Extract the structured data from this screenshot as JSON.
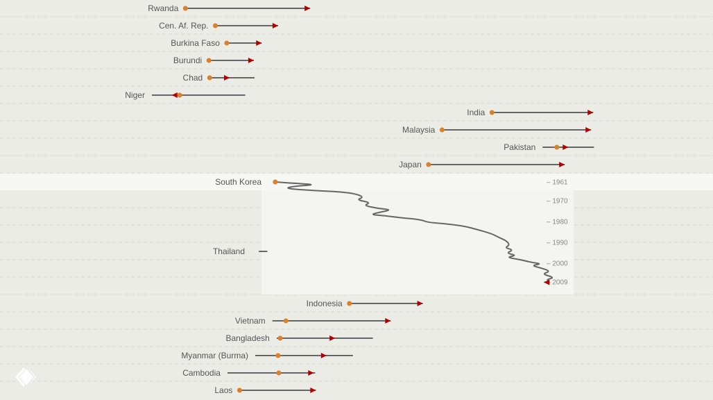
{
  "colors": {
    "background": "#ecece6",
    "highlight_band": "#f7f7f4",
    "panel": "#f4f4f0",
    "line": "#666666",
    "start_dot": "#d9822b",
    "end_arrow": "#b00000",
    "grid": "#d8d8d2",
    "logo": "#ffffff"
  },
  "icons": {
    "logo": "diamond-logo-icon"
  },
  "chart_data": {
    "type": "line",
    "title": "",
    "xlabel": "",
    "ylabel": "",
    "grid": true,
    "legend": "none",
    "series_top": [
      {
        "name": "Rwanda",
        "start": 0.26,
        "end": 0.435
      },
      {
        "name": "Cen. Af. Rep.",
        "start": 0.302,
        "end": 0.39
      },
      {
        "name": "Burkina Faso",
        "start": 0.318,
        "end": 0.367
      },
      {
        "name": "Burundi",
        "start": 0.293,
        "end": 0.356
      },
      {
        "name": "Chad",
        "start": 0.294,
        "end": 0.322,
        "extent": [
          0.294,
          0.357
        ]
      },
      {
        "name": "Niger",
        "start": 0.252,
        "end": 0.241,
        "extent": [
          0.213,
          0.344
        ]
      },
      {
        "name": "India",
        "start": 0.69,
        "end": 0.832
      },
      {
        "name": "Malaysia",
        "start": 0.62,
        "end": 0.829
      },
      {
        "name": "Pakistan",
        "start": 0.781,
        "end": 0.797,
        "extent": [
          0.761,
          0.833
        ]
      },
      {
        "name": "Japan",
        "start": 0.601,
        "end": 0.792
      }
    ],
    "highlight": {
      "names": [
        "South Korea",
        "Thailand"
      ],
      "year_ticks": [
        "1961",
        "1970",
        "1980",
        "1990",
        "2000",
        "2009"
      ],
      "path": [
        [
          0.386,
          1961
        ],
        [
          0.41,
          1961.6
        ],
        [
          0.445,
          1962.3
        ],
        [
          0.41,
          1963.1
        ],
        [
          0.4,
          1964.2
        ],
        [
          0.44,
          1965.1
        ],
        [
          0.48,
          1965.8
        ],
        [
          0.5,
          1966.8
        ],
        [
          0.51,
          1968.3
        ],
        [
          0.5,
          1969.6
        ],
        [
          0.52,
          1970.9
        ],
        [
          0.51,
          1972.3
        ],
        [
          0.53,
          1973.7
        ],
        [
          0.55,
          1974.4
        ],
        [
          0.53,
          1975.7
        ],
        [
          0.52,
          1976.7
        ],
        [
          0.54,
          1977.2
        ],
        [
          0.56,
          1978.1
        ],
        [
          0.59,
          1979.1
        ],
        [
          0.6,
          1980.4
        ],
        [
          0.62,
          1980.9
        ],
        [
          0.65,
          1982.1
        ],
        [
          0.67,
          1983.9
        ],
        [
          0.69,
          1985.9
        ],
        [
          0.7,
          1987.7
        ],
        [
          0.71,
          1989.2
        ],
        [
          0.715,
          1991.2
        ],
        [
          0.708,
          1992.6
        ],
        [
          0.72,
          1993.6
        ],
        [
          0.71,
          1995.2
        ],
        [
          0.725,
          1996.2
        ],
        [
          0.71,
          1997.2
        ],
        [
          0.73,
          1998.3
        ],
        [
          0.745,
          1999.6
        ],
        [
          0.76,
          2000.3
        ],
        [
          0.745,
          2001.1
        ],
        [
          0.76,
          2002.4
        ],
        [
          0.772,
          2003.9
        ],
        [
          0.76,
          2005.2
        ],
        [
          0.778,
          2006.9
        ],
        [
          0.766,
          2007.9
        ],
        [
          0.771,
          2008.7
        ],
        [
          0.763,
          2009.2
        ]
      ],
      "thailand_segment": [
        0.363,
        0.375
      ]
    },
    "series_bottom": [
      {
        "name": "Indonesia",
        "start": 0.49,
        "end": 0.593
      },
      {
        "name": "Vietnam",
        "start": 0.401,
        "end": 0.548,
        "extent": [
          0.382,
          0.548
        ]
      },
      {
        "name": "Bangladesh",
        "start": 0.393,
        "end": 0.47,
        "extent": [
          0.388,
          0.523
        ]
      },
      {
        "name": "Myanmar (Burma)",
        "start": 0.39,
        "end": 0.458,
        "extent": [
          0.358,
          0.495
        ]
      },
      {
        "name": "Cambodia",
        "start": 0.391,
        "end": 0.44,
        "extent": [
          0.319,
          0.442
        ]
      },
      {
        "name": "Laos",
        "start": 0.336,
        "end": 0.443
      }
    ]
  }
}
